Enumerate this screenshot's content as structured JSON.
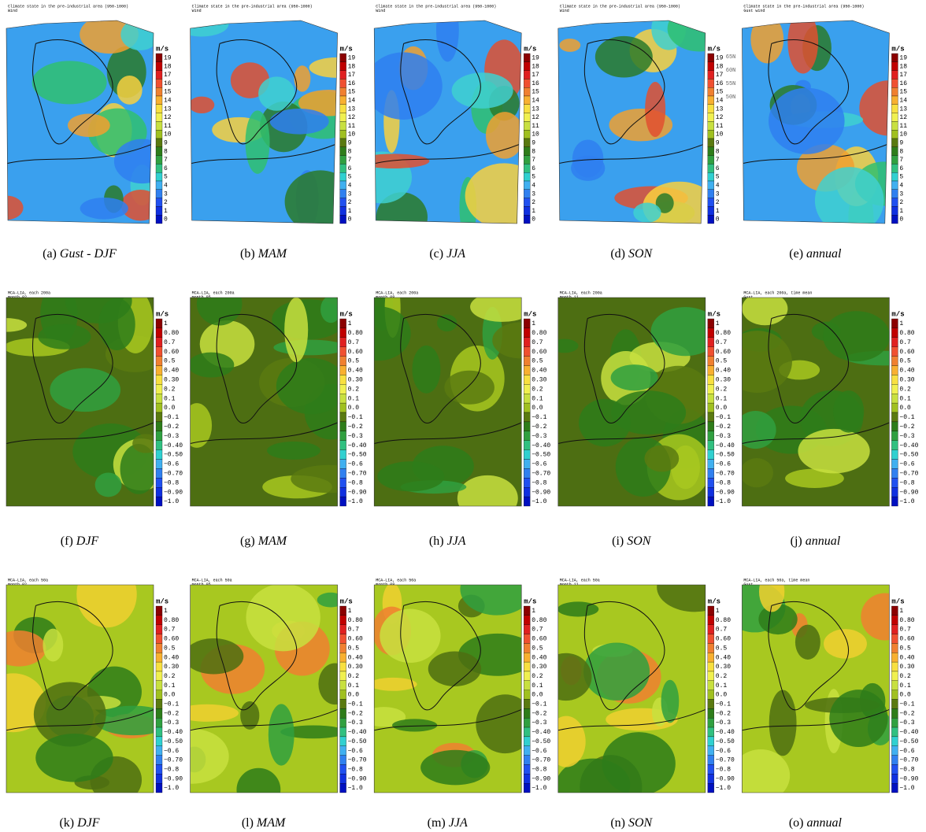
{
  "rows": [
    {
      "unit": "m/s",
      "colorbar": [
        "19",
        "18",
        "17",
        "16",
        "15",
        "14",
        "13",
        "12",
        "11",
        "10",
        "9",
        "8",
        "7",
        "6",
        "5",
        "4",
        "3",
        "2",
        "1",
        "0"
      ],
      "panels": [
        {
          "header": [
            "Climate state in the pre-industrial area (950-1000)",
            "Wind"
          ],
          "caption_label": "(a)",
          "caption": "Gust - DJF"
        },
        {
          "header": [
            "Climate state in the pre-industrial area (950-1000)",
            "Wind"
          ],
          "caption_label": "(b)",
          "caption": "MAM"
        },
        {
          "header": [
            "Climate state in the pre-industrial area (950-1000)",
            "Wind"
          ],
          "caption_label": "(c)",
          "caption": "JJA"
        },
        {
          "header": [
            "Climate state in the pre-industrial area (950-1000)",
            "Wind"
          ],
          "caption_label": "(d)",
          "caption": "SON"
        },
        {
          "header": [
            "Climate state in the pre-industrial area (950-1000)",
            "Gust wind"
          ],
          "caption_label": "(e)",
          "caption": "annual",
          "lat_labels": [
            "65N",
            "60N",
            "55N",
            "50N"
          ]
        }
      ]
    },
    {
      "unit": "m/s",
      "colorbar": [
        "1",
        "0.80",
        "0.7",
        "0.60",
        "0.5",
        "0.40",
        "0.30",
        "0.2",
        "0.1",
        "0.0",
        "−0.1",
        "−0.2",
        "−0.3",
        "−0.40",
        "−0.50",
        "−0.6",
        "−0.70",
        "−0.8",
        "−0.90",
        "−1.0"
      ],
      "panels": [
        {
          "header": [
            "MCA-LIA, each 200a",
            "month 02"
          ],
          "caption_label": "(f)",
          "caption": "DJF"
        },
        {
          "header": [
            "MCA-LIA, each 200a",
            "month 05"
          ],
          "caption_label": "(g)",
          "caption": "MAM"
        },
        {
          "header": [
            "MCA-LIA, each 200a",
            "month 08"
          ],
          "caption_label": "(h)",
          "caption": "JJA"
        },
        {
          "header": [
            "MCA-LIA, each 200a",
            "month 11"
          ],
          "caption_label": "(i)",
          "caption": "SON"
        },
        {
          "header": [
            "MCA-LIA, each 200a, time mean",
            "Gust"
          ],
          "caption_label": "(j)",
          "caption": "annual"
        }
      ]
    },
    {
      "unit": "m/s",
      "colorbar": [
        "1",
        "0.80",
        "0.7",
        "0.60",
        "0.5",
        "0.40",
        "0.30",
        "0.2",
        "0.1",
        "0.0",
        "−0.1",
        "−0.2",
        "−0.3",
        "−0.40",
        "−0.50",
        "−0.6",
        "−0.70",
        "−0.8",
        "−0.90",
        "−1.0"
      ],
      "panels": [
        {
          "header": [
            "MCA-LIA, each 50a",
            "month 02"
          ],
          "caption_label": "(k)",
          "caption": "DJF"
        },
        {
          "header": [
            "MCA-LIA, each 50a",
            "month 05"
          ],
          "caption_label": "(l)",
          "caption": "MAM"
        },
        {
          "header": [
            "MCA-LIA, each 50a",
            "month 08"
          ],
          "caption_label": "(m)",
          "caption": "JJA"
        },
        {
          "header": [
            "MCA-LIA, each 50a",
            "month 11"
          ],
          "caption_label": "(n)",
          "caption": "SON"
        },
        {
          "header": [
            "MCA-LIA, each 50a, time mean",
            "Gust"
          ],
          "caption_label": "(o)",
          "caption": "annual"
        }
      ]
    }
  ]
}
